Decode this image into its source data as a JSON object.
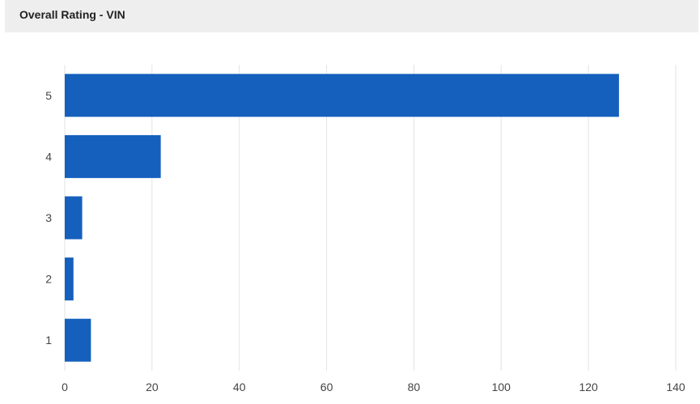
{
  "header": {
    "title": "Overall Rating - VIN"
  },
  "colors": {
    "bar": "#1560bd",
    "grid": "#e3e3e3",
    "header_bg": "#eeeeee"
  },
  "chart_data": {
    "type": "bar",
    "orientation": "horizontal",
    "title": "Overall Rating - VIN",
    "xlabel": "",
    "ylabel": "",
    "categories": [
      "5",
      "4",
      "3",
      "2",
      "1"
    ],
    "values": [
      127,
      22,
      4,
      2,
      6
    ],
    "xlim": [
      0,
      140
    ],
    "xticks": [
      0,
      20,
      40,
      60,
      80,
      100,
      120,
      140
    ],
    "grid": true,
    "legend": "none"
  }
}
